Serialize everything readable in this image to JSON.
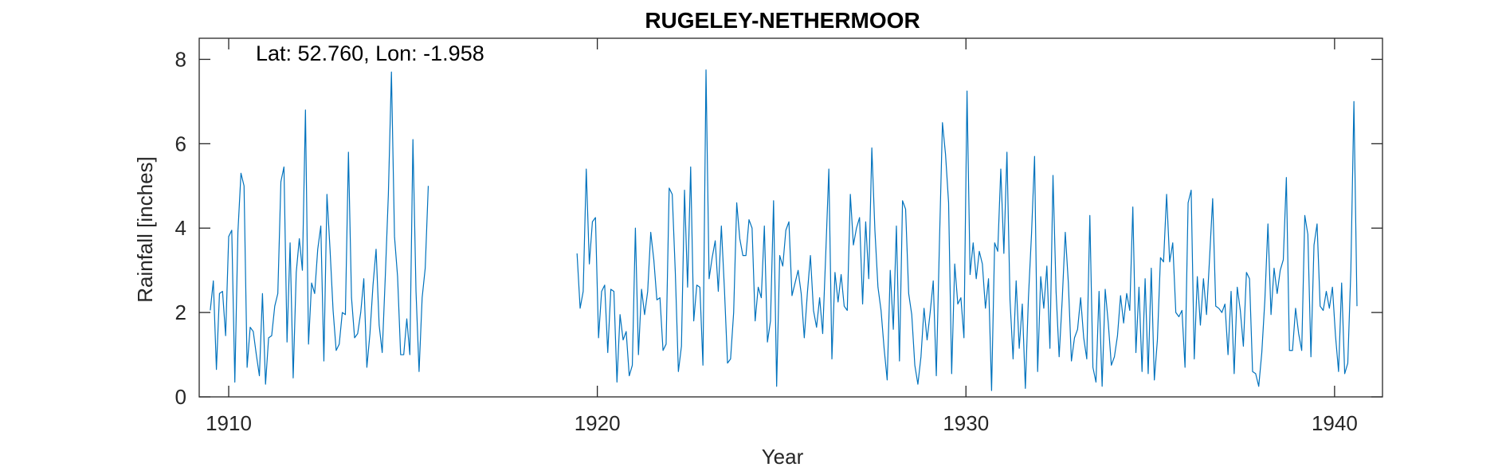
{
  "colors": {
    "line": "#0072BD",
    "axis": "#262626",
    "background": "#ffffff"
  },
  "chart_data": {
    "type": "line",
    "title": "RUGELEY-NETHERMOOR",
    "annotation": "Lat: 52.760, Lon: -1.958",
    "xlabel": "Year",
    "ylabel": "Rainfall [inches]",
    "xlim": [
      1909.2,
      1941.3
    ],
    "ylim": [
      0,
      8.5
    ],
    "xticks": [
      1910,
      1920,
      1930,
      1940
    ],
    "yticks": [
      0,
      2,
      4,
      6,
      8
    ],
    "grid": false,
    "box": true,
    "segments": [
      {
        "start": 1909.5,
        "step": 0.0833,
        "values": [
          2.05,
          2.75,
          0.65,
          2.45,
          2.5,
          1.45,
          3.8,
          3.95,
          0.35,
          3.9,
          5.3,
          5.0,
          0.7,
          1.65,
          1.55,
          1.0,
          0.5,
          2.45,
          0.3,
          1.4,
          1.45,
          2.15,
          2.45,
          5.1,
          5.45,
          1.3,
          3.65,
          0.45,
          2.95,
          3.75,
          3.0,
          6.8,
          1.25,
          2.7,
          2.45,
          3.5,
          4.05,
          0.85,
          4.8,
          3.5,
          2.05,
          1.1,
          1.25,
          2.0,
          1.95,
          5.8,
          2.35,
          1.4,
          1.5,
          2.0,
          2.8,
          0.7,
          1.5,
          2.65,
          3.5,
          1.7,
          1.05,
          2.85,
          4.8,
          7.7,
          3.8,
          2.85,
          1.0,
          1.0,
          1.85,
          1.0,
          6.1,
          2.5,
          0.6,
          2.35,
          3.05,
          5.0
        ]
      },
      {
        "start": 1919.45,
        "step": 0.0833,
        "values": [
          3.4,
          2.1,
          2.5,
          5.4,
          3.15,
          4.15,
          4.25,
          1.4,
          2.5,
          2.65,
          1.05,
          2.55,
          2.5,
          0.35,
          1.95,
          1.35,
          1.55,
          0.5,
          0.75,
          4.0,
          1.0,
          2.55,
          1.95,
          2.5,
          3.9,
          3.25,
          2.3,
          2.35,
          1.1,
          1.25,
          4.95,
          4.8,
          2.95,
          0.6,
          1.2,
          4.9,
          2.6,
          5.45,
          1.8,
          2.65,
          2.6,
          0.75,
          7.75,
          2.8,
          3.3,
          3.7,
          2.5,
          4.05,
          2.55,
          0.8,
          0.9,
          2.0,
          4.6,
          3.75,
          3.35,
          3.35,
          4.2,
          4.0,
          1.8,
          2.6,
          2.35,
          4.05,
          1.3,
          1.8,
          4.65,
          0.25,
          3.35,
          3.1,
          3.95,
          4.15,
          2.4,
          2.7,
          3.0,
          2.45,
          1.4,
          2.45,
          3.35,
          2.05,
          1.65,
          2.35,
          1.5,
          3.4,
          5.4,
          0.9,
          2.95,
          2.25,
          2.9,
          2.15,
          2.05,
          4.8,
          3.6,
          4.0,
          4.25,
          2.2,
          4.15,
          2.8,
          5.9,
          3.95,
          2.6,
          2.05,
          1.15,
          0.4,
          3.0,
          1.6,
          4.05,
          0.85,
          4.65,
          4.45,
          2.45,
          1.95,
          0.75,
          0.3,
          0.95,
          2.1,
          1.35,
          2.0,
          2.75,
          0.5,
          3.6,
          6.5,
          5.75,
          4.6,
          0.55,
          3.15,
          2.2,
          2.35,
          1.4,
          7.25,
          2.9,
          3.65,
          2.8,
          3.45,
          3.15,
          2.1,
          2.8,
          0.15,
          3.65,
          3.45,
          5.4,
          3.4,
          5.8,
          2.3,
          0.9,
          2.75,
          1.15,
          2.2,
          0.2,
          2.35,
          3.85,
          5.7,
          0.6,
          2.85,
          2.1,
          3.1,
          1.15,
          5.25,
          2.5,
          0.95,
          2.3,
          3.9,
          2.7,
          0.85,
          1.4,
          1.6,
          2.35,
          1.4,
          0.9,
          4.3,
          0.7,
          0.35,
          2.5,
          0.25,
          2.55,
          1.75,
          0.75,
          0.95,
          1.45,
          2.4,
          1.75,
          2.45,
          2.05,
          4.5,
          1.05,
          2.6,
          0.6,
          2.8,
          0.55,
          3.05,
          0.4,
          1.35,
          3.3,
          3.2,
          4.8,
          3.2,
          3.65,
          2.0,
          1.9,
          2.05,
          0.7,
          4.6,
          4.9,
          0.9,
          2.85,
          1.7,
          2.8,
          1.95,
          3.3,
          4.7,
          2.15,
          2.1,
          2.0,
          2.2,
          1.0,
          2.5,
          0.55,
          2.6,
          2.05,
          1.2,
          2.95,
          2.8,
          0.6,
          0.55,
          0.25,
          1.05,
          2.3,
          4.1,
          1.95,
          3.05,
          2.45,
          3.0,
          3.25,
          5.2,
          1.1,
          1.1,
          2.1,
          1.5,
          1.1,
          4.3,
          3.85,
          0.95,
          3.6,
          4.1,
          2.15,
          2.05,
          2.5,
          2.1,
          2.6,
          1.45,
          0.6,
          2.7,
          0.55,
          0.8,
          3.0,
          7.0,
          2.15
        ]
      }
    ]
  }
}
